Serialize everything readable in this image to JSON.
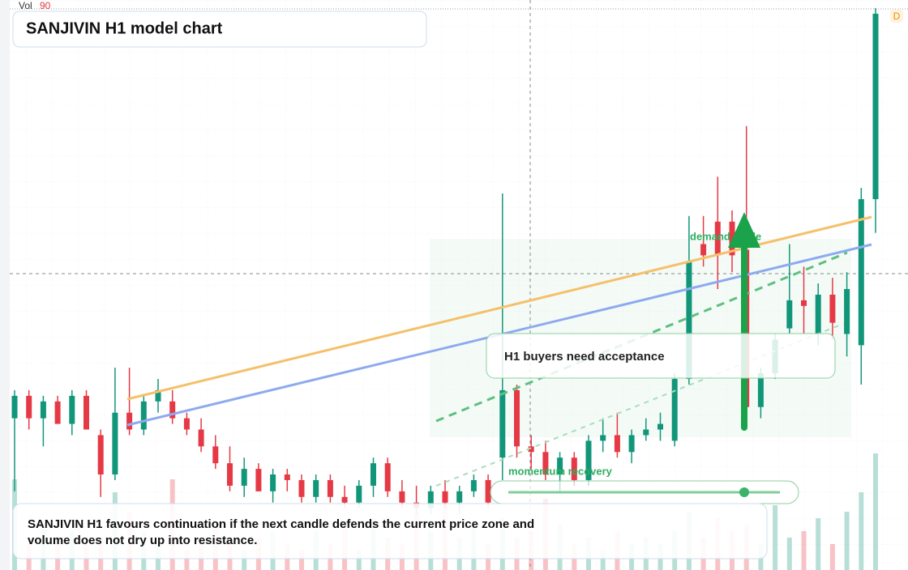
{
  "chart_data": {
    "type": "candlestick",
    "title": "SANJIVIN H1 model chart",
    "volume_label": "Vol",
    "volume_value_label": "90",
    "timeframe_badge": "D",
    "annotations": {
      "zone": "demand guide",
      "callout": "H1 buyers need acceptance",
      "momentum": "momentum recovery"
    },
    "footer": [
      "SANJIVIN H1 favours continuation if the next candle defends the current price zone and",
      "volume does not dry up into resistance."
    ],
    "ylim": [
      0,
      100
    ],
    "volume_lim": [
      0,
      100
    ],
    "up_color": "#12967a",
    "down_color": "#e63946",
    "ohlc": [
      [
        27,
        32,
        14,
        31
      ],
      [
        31,
        32,
        25,
        27
      ],
      [
        27,
        31,
        22,
        30
      ],
      [
        30,
        31,
        26,
        26
      ],
      [
        26,
        32,
        24,
        31
      ],
      [
        31,
        32,
        25,
        25
      ],
      [
        24,
        25,
        13,
        17
      ],
      [
        17,
        36,
        16,
        28
      ],
      [
        28,
        36,
        24,
        25
      ],
      [
        25,
        31,
        24,
        30
      ],
      [
        30,
        34,
        28,
        32
      ],
      [
        30,
        32,
        26,
        27
      ],
      [
        27,
        28,
        24,
        25
      ],
      [
        25,
        27,
        21,
        22
      ],
      [
        22,
        24,
        18,
        19
      ],
      [
        19,
        22,
        14,
        15
      ],
      [
        15,
        20,
        13,
        18
      ],
      [
        18,
        19,
        14,
        14
      ],
      [
        14,
        18,
        12,
        17
      ],
      [
        17,
        18,
        14,
        16
      ],
      [
        16,
        17,
        12,
        13
      ],
      [
        13,
        17,
        12,
        16
      ],
      [
        16,
        17,
        12,
        13
      ],
      [
        13,
        15,
        11,
        12
      ],
      [
        12,
        16,
        11,
        15
      ],
      [
        15,
        20,
        13,
        19
      ],
      [
        19,
        20,
        13,
        14
      ],
      [
        14,
        16,
        11,
        12
      ],
      [
        12,
        15,
        10,
        11
      ],
      [
        11,
        15,
        10,
        14
      ],
      [
        14,
        16,
        11,
        12
      ],
      [
        12,
        15,
        10,
        14
      ],
      [
        14,
        17,
        13,
        16
      ],
      [
        16,
        17,
        11,
        12
      ],
      [
        20,
        67,
        16,
        32
      ],
      [
        32,
        33,
        20,
        22
      ],
      [
        22,
        24,
        18,
        21
      ],
      [
        21,
        23,
        16,
        17
      ],
      [
        17,
        21,
        14,
        20
      ],
      [
        20,
        21,
        15,
        16
      ],
      [
        16,
        24,
        15,
        23
      ],
      [
        23,
        27,
        21,
        24
      ],
      [
        24,
        28,
        20,
        21
      ],
      [
        21,
        25,
        19,
        24
      ],
      [
        24,
        27,
        23,
        25
      ],
      [
        25,
        28,
        23,
        26
      ],
      [
        23,
        35,
        22,
        34
      ],
      [
        34,
        63,
        33,
        55
      ],
      [
        58,
        63,
        54,
        56
      ],
      [
        62,
        70,
        50,
        56
      ],
      [
        62,
        64,
        53,
        56
      ],
      [
        57,
        79,
        25,
        29
      ],
      [
        29,
        36,
        27,
        35
      ],
      [
        35,
        42,
        34,
        41
      ],
      [
        43,
        58,
        42,
        48
      ],
      [
        48,
        54,
        42,
        47
      ],
      [
        42,
        51,
        40,
        49
      ],
      [
        49,
        52,
        41,
        44
      ],
      [
        42,
        53,
        38,
        50
      ],
      [
        40,
        68,
        33,
        66
      ],
      [
        66,
        100,
        60,
        99
      ]
    ],
    "volume": [
      70,
      20,
      35,
      25,
      30,
      20,
      25,
      60,
      45,
      30,
      20,
      70,
      15,
      25,
      35,
      20,
      15,
      25,
      30,
      20,
      15,
      30,
      20,
      35,
      15,
      40,
      25,
      20,
      45,
      30,
      55,
      25,
      35,
      20,
      40,
      25,
      30,
      55,
      35,
      20,
      25,
      15,
      30,
      20,
      25,
      20,
      30,
      45,
      25,
      40,
      30,
      35,
      20,
      50,
      25,
      30,
      40,
      20,
      45,
      60,
      90
    ]
  }
}
